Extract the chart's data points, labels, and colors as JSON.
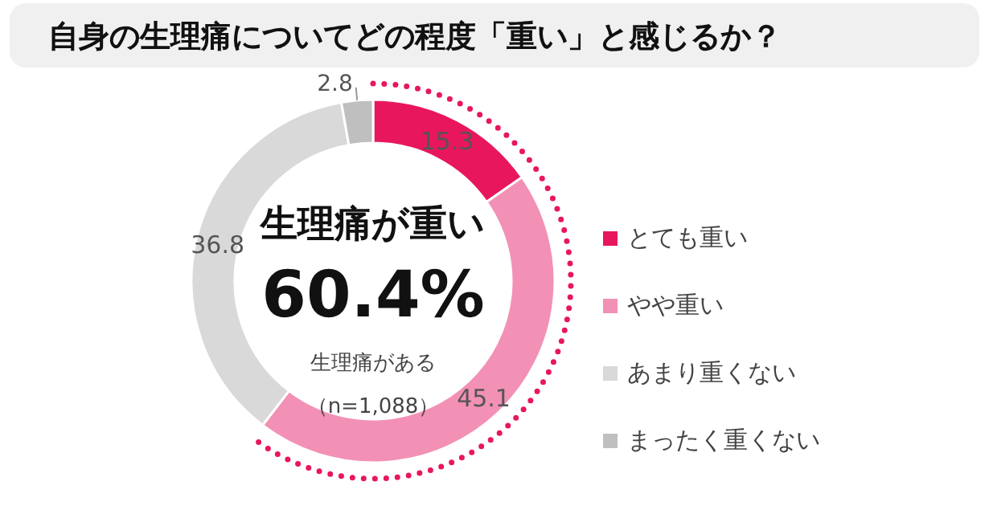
{
  "chart_data": {
    "type": "donut",
    "title": "自身の生理痛についてどの程度「重い」と感じるか？",
    "categories": [
      "とても重い",
      "やや重い",
      "あまり重くない",
      "まったく重くない"
    ],
    "values": [
      15.3,
      45.1,
      36.8,
      2.8
    ],
    "colors": [
      "#e8175d",
      "#f390b5",
      "#d9d9d9",
      "#bfbfbf"
    ],
    "data_labels": true,
    "legend": "right",
    "annotations": [
      "生理痛が重い",
      "60.4%",
      "生理痛がある",
      "（n=1,088）"
    ]
  }
}
